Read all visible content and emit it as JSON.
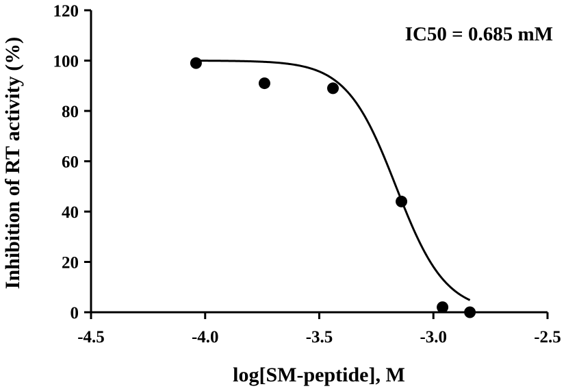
{
  "chart_data": {
    "type": "scatter",
    "title": "",
    "xlabel": "log[SM-peptide], M",
    "ylabel": "Inhibition of RT activity (%)",
    "xlim": [
      -4.5,
      -2.5
    ],
    "ylim": [
      0,
      120
    ],
    "xticks": [
      -4.5,
      -4.0,
      -3.5,
      -3.0,
      -2.5
    ],
    "xtick_labels": [
      "-4.5",
      "-4.0",
      "-3.5",
      "-3.0",
      "-2.5"
    ],
    "yticks": [
      0,
      20,
      40,
      60,
      80,
      100,
      120
    ],
    "ytick_labels": [
      "0",
      "20",
      "40",
      "60",
      "80",
      "100",
      "120"
    ],
    "grid": false,
    "legend": "none",
    "annotation": "IC50 = 0.685 mM",
    "series": [
      {
        "type": "scatter",
        "x": [
          -4.04,
          -3.74,
          -3.44,
          -3.14,
          -2.96,
          -2.84
        ],
        "y": [
          99,
          91,
          89,
          44,
          2,
          0
        ]
      },
      {
        "type": "fit-curve",
        "model": "sigmoidal dose-response",
        "top": 100,
        "bottom": 0,
        "log_ic50": -3.164,
        "hill_slope": -4,
        "x_range": [
          -4.04,
          -2.84
        ]
      }
    ]
  }
}
